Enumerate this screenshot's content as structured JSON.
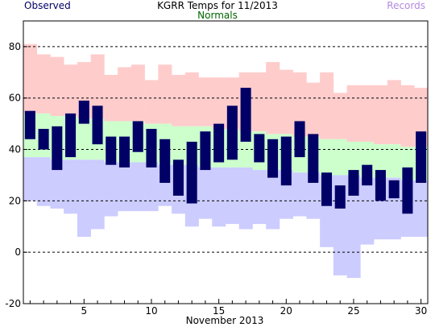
{
  "chart_data": {
    "type": "bar",
    "title": "KGRR Temps for 11/2013",
    "xlabel": "November 2013",
    "ylabel": "",
    "ylim": [
      -20,
      90
    ],
    "xlim": [
      0.5,
      30.5
    ],
    "yticks": [
      -20,
      0,
      20,
      40,
      60,
      80
    ],
    "xticks": [
      5,
      10,
      15,
      20,
      25,
      30
    ],
    "grid": "horizontal dashed",
    "legend": [
      {
        "name": "Observed",
        "color": "#000066"
      },
      {
        "name": "Normals",
        "color": "#006600"
      },
      {
        "name": "Records",
        "color": "#b388e0"
      }
    ],
    "days": [
      1,
      2,
      3,
      4,
      5,
      6,
      7,
      8,
      9,
      10,
      11,
      12,
      13,
      14,
      15,
      16,
      17,
      18,
      19,
      20,
      21,
      22,
      23,
      24,
      25,
      26,
      27,
      28,
      29,
      30
    ],
    "record_high": [
      81,
      77,
      76,
      73,
      74,
      77,
      69,
      72,
      73,
      67,
      73,
      69,
      70,
      68,
      68,
      68,
      70,
      70,
      74,
      71,
      70,
      66,
      70,
      62,
      65,
      65,
      65,
      67,
      65,
      64
    ],
    "normal_high": [
      54,
      54,
      53,
      53,
      52,
      52,
      51,
      51,
      51,
      50,
      50,
      49,
      49,
      49,
      48,
      48,
      47,
      47,
      46,
      46,
      45,
      45,
      44,
      44,
      43,
      43,
      42,
      42,
      41,
      41
    ],
    "normal_low": [
      37,
      37,
      36,
      36,
      36,
      36,
      35,
      35,
      35,
      35,
      34,
      34,
      34,
      33,
      33,
      33,
      33,
      32,
      32,
      32,
      31,
      31,
      30,
      30,
      30,
      29,
      29,
      29,
      28,
      28
    ],
    "record_low": [
      20,
      18,
      17,
      15,
      6,
      9,
      14,
      16,
      16,
      16,
      18,
      15,
      10,
      13,
      10,
      11,
      9,
      11,
      9,
      13,
      14,
      13,
      2,
      -9,
      -10,
      3,
      5,
      5,
      6,
      6
    ],
    "observed_high": [
      55,
      48,
      49,
      54,
      59,
      57,
      45,
      45,
      51,
      48,
      44,
      36,
      43,
      47,
      50,
      57,
      64,
      46,
      44,
      45,
      51,
      46,
      31,
      26,
      32,
      34,
      32,
      28,
      33,
      47
    ],
    "observed_low": [
      44,
      40,
      32,
      37,
      50,
      42,
      34,
      33,
      39,
      33,
      27,
      22,
      19,
      32,
      35,
      36,
      43,
      35,
      29,
      26,
      37,
      27,
      18,
      17,
      22,
      26,
      20,
      21,
      15,
      27
    ],
    "colors": {
      "record_band": "#ffcccc",
      "normal_band": "#ccffcc",
      "record_low_band": "#ccccff",
      "observed_bar": "#000066",
      "grid": "#000000",
      "axis": "#000000"
    }
  }
}
